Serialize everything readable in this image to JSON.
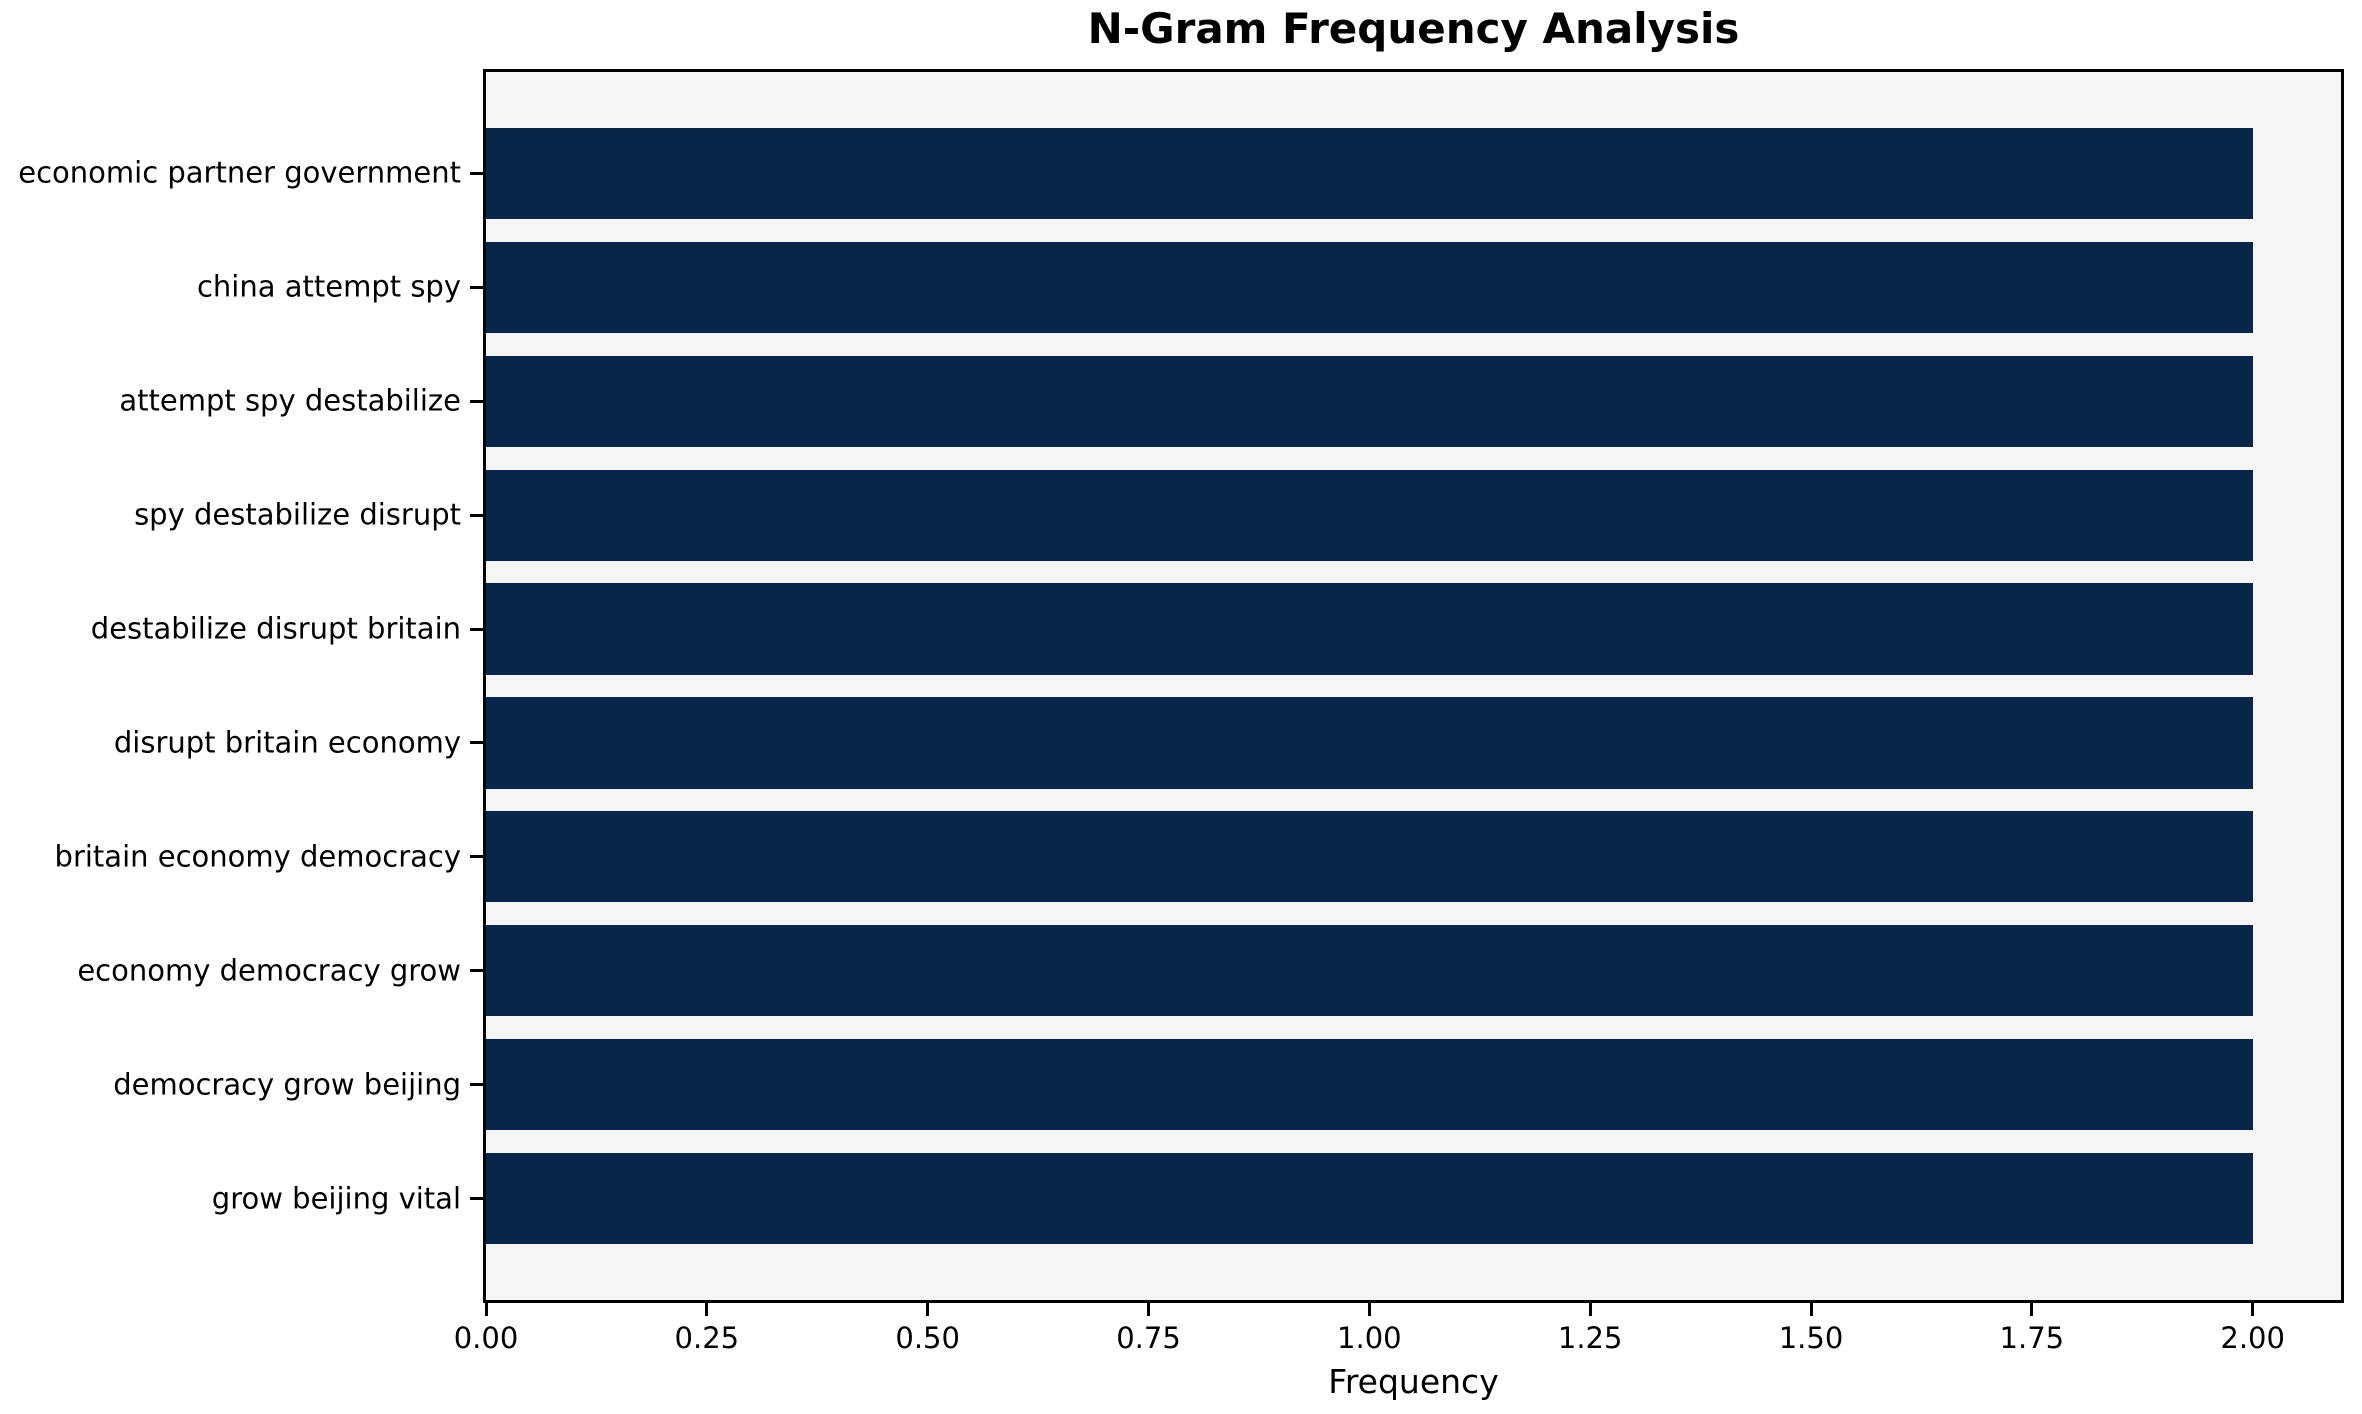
{
  "chart_data": {
    "type": "bar",
    "orientation": "horizontal",
    "title": "N-Gram Frequency Analysis",
    "xlabel": "Frequency",
    "ylabel": "",
    "categories": [
      "economic partner government",
      "china attempt spy",
      "attempt spy destabilize",
      "spy destabilize disrupt",
      "destabilize disrupt britain",
      "disrupt britain economy",
      "britain economy democracy",
      "economy democracy grow",
      "democracy grow beijing",
      "grow beijing vital"
    ],
    "values": [
      2,
      2,
      2,
      2,
      2,
      2,
      2,
      2,
      2,
      2
    ],
    "xlim": [
      0,
      2.1
    ],
    "xticks": [
      0,
      0.25,
      0.5,
      0.75,
      1.0,
      1.25,
      1.5,
      1.75,
      2.0
    ],
    "xtick_labels": [
      "0.00",
      "0.25",
      "0.50",
      "0.75",
      "1.00",
      "1.25",
      "1.50",
      "1.75",
      "2.00"
    ],
    "grid": false,
    "legend": null,
    "colors": {
      "bar": "#08254b",
      "plot_background": "#f5f5f5",
      "figure_background": "#ffffff",
      "spine": "#000000",
      "text": "#000000"
    }
  }
}
